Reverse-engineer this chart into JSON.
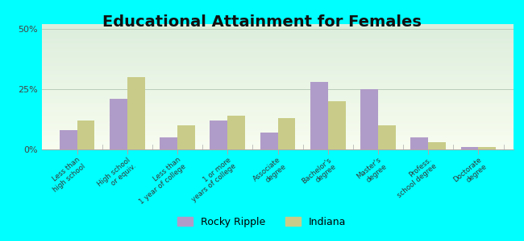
{
  "title": "Educational Attainment for Females",
  "categories": [
    "Less than\nhigh school",
    "High school\nor equiv.",
    "Less than\n1 year of college",
    "1 or more\nyears of college",
    "Associate\ndegree",
    "Bachelor's\ndegree",
    "Master's\ndegree",
    "Profess.\nschool degree",
    "Doctorate\ndegree"
  ],
  "rocky_ripple": [
    8,
    21,
    5,
    12,
    7,
    28,
    25,
    5,
    1
  ],
  "indiana": [
    12,
    30,
    10,
    14,
    13,
    20,
    10,
    3,
    1
  ],
  "rocky_ripple_color": "#b09cc8",
  "indiana_color": "#c8cc88",
  "background_color": "#00ffff",
  "title_fontsize": 14,
  "ylabel_ticks": [
    0,
    25,
    50
  ],
  "ylim": [
    0,
    52
  ],
  "bar_width": 0.35,
  "legend_labels": [
    "Rocky Ripple",
    "Indiana"
  ]
}
